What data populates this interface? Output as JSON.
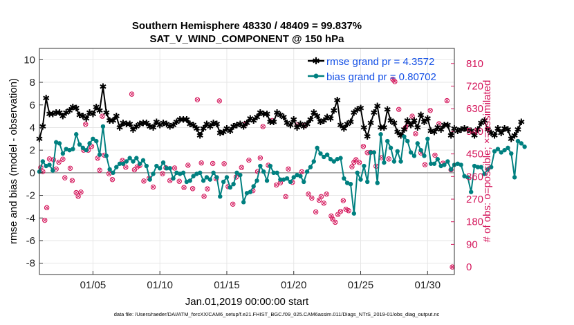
{
  "chart_data": {
    "type": "line",
    "title": "Southern Hemisphere 48330 / 48409 = 99.837%",
    "subtitle": "SAT_V_WIND_COMPONENT @ 150 hPa",
    "xlabel": "Jan.01,2019 00:00:00 start",
    "ylabel": "rmse and bias (model - observation)",
    "y2label": "# of obs: o=possible; ×=assimilated",
    "xlim": [
      1,
      32
    ],
    "ylim": [
      -9,
      11
    ],
    "y2lim": [
      -30,
      870
    ],
    "yticks": [
      -8,
      -6,
      -4,
      -2,
      0,
      2,
      4,
      6,
      8,
      10
    ],
    "y2ticks": [
      0,
      90,
      180,
      270,
      360,
      450,
      540,
      630,
      720,
      810
    ],
    "xticks": [
      {
        "value": 5,
        "label": "01/05"
      },
      {
        "value": 10,
        "label": "01/10"
      },
      {
        "value": 15,
        "label": "01/15"
      },
      {
        "value": 20,
        "label": "01/20"
      },
      {
        "value": 25,
        "label": "01/25"
      },
      {
        "value": 30,
        "label": "01/30"
      }
    ],
    "grid": true,
    "legend_position": "top-right",
    "step_days": 0.25,
    "series": [
      {
        "name": "rmse grand pr = 4.3572",
        "color": "#000000",
        "marker": "star",
        "x_start": 1.0,
        "values": [
          3.0,
          4.1,
          6.6,
          5.2,
          5.2,
          5.3,
          5.3,
          5.0,
          5.3,
          5.5,
          5.8,
          5.7,
          5.1,
          5.0,
          4.8,
          5.3,
          5.2,
          5.8,
          5.5,
          7.6,
          5.3,
          4.6,
          4.6,
          5.0,
          4.0,
          4.4,
          4.3,
          4.3,
          3.8,
          4.1,
          4.3,
          4.4,
          4.4,
          4.1,
          4.0,
          4.5,
          4.2,
          4.4,
          4.3,
          4.1,
          4.2,
          4.5,
          4.7,
          4.7,
          4.7,
          4.3,
          4.2,
          3.9,
          3.3,
          3.9,
          4.3,
          4.1,
          4.4,
          4.3,
          3.5,
          3.6,
          3.9,
          3.7,
          4.1,
          4.2,
          4.3,
          4.1,
          4.4,
          4.8,
          4.6,
          4.9,
          5.3,
          5.2,
          5.2,
          4.5,
          4.5,
          5.3,
          5.1,
          4.9,
          4.4,
          4.2,
          4.7,
          4.0,
          4.3,
          4.1,
          4.3,
          4.7,
          5.3,
          5.0,
          4.5,
          4.6,
          4.9,
          4.8,
          5.5,
          6.4,
          4.2,
          3.9,
          4.3,
          4.5,
          5.3,
          5.6,
          5.7,
          4.0,
          3.2,
          4.4,
          5.3,
          5.9,
          4.0,
          4.0,
          5.6,
          4.6,
          4.4,
          3.6,
          3.3,
          3.8,
          4.6,
          4.2,
          4.6,
          4.0,
          5.1,
          4.5,
          4.8,
          3.7,
          3.6,
          4.0,
          3.8,
          4.2,
          4.2,
          3.3,
          3.9,
          3.7,
          3.8,
          3.9,
          3.8,
          3.7,
          3.3,
          3.8,
          4.4,
          4.6,
          3.8,
          3.5,
          3.3,
          3.9,
          3.5,
          3.9,
          3.8,
          3.0,
          3.3,
          3.8,
          4.5
        ]
      },
      {
        "name": "bias grand pr = 0.80702",
        "color": "#008080",
        "marker": "circle",
        "x_start": 1.0,
        "values": [
          0.1,
          1.0,
          0.6,
          0.7,
          0.2,
          2.7,
          2.6,
          1.7,
          2.1,
          2.0,
          2.1,
          3.4,
          2.5,
          2.2,
          2.0,
          2.6,
          3.0,
          2.8,
          1.6,
          4.1,
          1.5,
          0.3,
          0.0,
          0.5,
          0.8,
          0.8,
          1.0,
          1.3,
          1.0,
          1.3,
          0.8,
          1.1,
          0.6,
          -0.6,
          -0.1,
          0.6,
          0.4,
          0.9,
          0.4,
          0.4,
          -0.5,
          0.0,
          -0.1,
          0.0,
          -0.8,
          -0.7,
          -0.3,
          -0.1,
          0.0,
          -0.7,
          -0.4,
          -0.6,
          0.0,
          -0.4,
          -2.1,
          -0.8,
          -0.4,
          -1.3,
          -1.0,
          0.0,
          -0.2,
          -2.6,
          -1.8,
          -1.7,
          -1.2,
          -0.7,
          0.6,
          0.1,
          -0.7,
          0.6,
          0.0,
          0.0,
          -0.6,
          -0.6,
          -0.5,
          -0.8,
          -0.4,
          -0.2,
          -0.3,
          -0.8,
          0.1,
          0.5,
          1.0,
          2.2,
          1.7,
          1.4,
          1.6,
          1.2,
          1.0,
          1.2,
          1.3,
          -0.5,
          -0.9,
          -1.0,
          -3.6,
          0.0,
          -0.6,
          0.6,
          -0.8,
          1.8,
          1.8,
          -0.9,
          3.4,
          0.9,
          2.8,
          2.2,
          1.0,
          1.9,
          1.0,
          3.2,
          2.8,
          1.8,
          1.5,
          2.6,
          2.0,
          1.5,
          3.0,
          0.8,
          0.8,
          1.2,
          0.6,
          0.7,
          1.0,
          0.3,
          0.7,
          0.8,
          0.7,
          -0.3,
          -0.4,
          -1.7,
          0.6,
          0.5,
          0.5,
          -0.1,
          0.3,
          0.5,
          1.9,
          2.1,
          1.8,
          2.0,
          2.2,
          1.7,
          -0.4,
          2.8,
          2.6,
          2.3
        ]
      }
    ],
    "obs_count_points": [
      [
        1.1,
        396
      ],
      [
        1.25,
        380
      ],
      [
        1.4,
        186
      ],
      [
        1.55,
        236
      ],
      [
        1.75,
        430
      ],
      [
        2.05,
        427
      ],
      [
        2.25,
        390
      ],
      [
        2.45,
        417
      ],
      [
        2.75,
        429
      ],
      [
        2.9,
        355
      ],
      [
        3.3,
        393
      ],
      [
        3.45,
        344
      ],
      [
        3.75,
        296
      ],
      [
        3.9,
        281
      ],
      [
        4.1,
        298
      ],
      [
        4.3,
        465
      ],
      [
        4.45,
        568
      ],
      [
        4.65,
        465
      ],
      [
        4.9,
        480
      ],
      [
        5.35,
        433
      ],
      [
        5.5,
        385
      ],
      [
        5.7,
        600
      ],
      [
        5.85,
        445
      ],
      [
        6.2,
        371
      ],
      [
        6.45,
        348
      ],
      [
        7.2,
        424
      ],
      [
        7.45,
        397
      ],
      [
        7.9,
        688
      ],
      [
        8.1,
        387
      ],
      [
        8.3,
        398
      ],
      [
        8.5,
        404
      ],
      [
        8.8,
        342
      ],
      [
        9.2,
        353
      ],
      [
        9.5,
        318
      ],
      [
        10.2,
        371
      ],
      [
        10.45,
        395
      ],
      [
        10.75,
        344
      ],
      [
        11.1,
        394
      ],
      [
        11.45,
        341
      ],
      [
        11.8,
        316
      ],
      [
        12.1,
        405
      ],
      [
        12.45,
        312
      ],
      [
        12.8,
        666
      ],
      [
        13.1,
        414
      ],
      [
        13.3,
        281
      ],
      [
        13.55,
        311
      ],
      [
        13.95,
        412
      ],
      [
        14.2,
        351
      ],
      [
        14.45,
        661
      ],
      [
        14.8,
        411
      ],
      [
        15.1,
        320
      ],
      [
        15.45,
        250
      ],
      [
        15.7,
        358
      ],
      [
        16.1,
        396
      ],
      [
        16.4,
        570
      ],
      [
        16.65,
        425
      ],
      [
        16.95,
        304
      ],
      [
        17.3,
        380
      ],
      [
        17.5,
        434
      ],
      [
        17.7,
        559
      ],
      [
        18.1,
        405
      ],
      [
        18.4,
        583
      ],
      [
        18.7,
        326
      ],
      [
        19.0,
        335
      ],
      [
        19.4,
        280
      ],
      [
        19.6,
        390
      ],
      [
        19.9,
        337
      ],
      [
        20.25,
        565
      ],
      [
        20.6,
        379
      ],
      [
        20.8,
        563
      ],
      [
        21.1,
        290
      ],
      [
        21.35,
        274
      ],
      [
        21.65,
        219
      ],
      [
        21.9,
        266
      ],
      [
        22.05,
        280
      ],
      [
        22.25,
        254
      ],
      [
        22.45,
        290
      ],
      [
        22.8,
        203
      ],
      [
        22.9,
        191
      ],
      [
        23.1,
        178
      ],
      [
        23.3,
        209
      ],
      [
        23.5,
        221
      ],
      [
        23.7,
        264
      ],
      [
        23.9,
        230
      ],
      [
        24.1,
        224
      ],
      [
        24.35,
        399
      ],
      [
        24.5,
        417
      ],
      [
        24.65,
        427
      ],
      [
        24.9,
        416
      ],
      [
        25.2,
        480
      ],
      [
        25.5,
        455
      ],
      [
        25.75,
        456
      ],
      [
        26.15,
        401
      ],
      [
        26.55,
        435
      ],
      [
        27.1,
        430
      ],
      [
        27.4,
        747
      ],
      [
        27.55,
        738
      ],
      [
        27.85,
        627
      ],
      [
        28.35,
        555
      ],
      [
        28.55,
        571
      ],
      [
        28.85,
        600
      ],
      [
        29.1,
        530
      ],
      [
        29.5,
        454
      ],
      [
        29.8,
        407
      ],
      [
        30.2,
        623
      ],
      [
        30.55,
        445
      ],
      [
        30.85,
        570
      ],
      [
        31.15,
        413
      ],
      [
        31.45,
        662
      ],
      [
        31.75,
        387
      ],
      [
        31.85,
        0
      ]
    ],
    "footer": "data file: /Users/raeder/DAI/ATM_forcXX/CAM6_setup/f.e21.FHIST_BGC.f09_025.CAM6assim.011/Diags_NTrS_2019-01/obs_diag_output.nc",
    "colors": {
      "rmse": "#000000",
      "bias": "#008080",
      "obs": "#d4145a",
      "legend_text": "#1450e6",
      "zero_line": "#999999"
    }
  }
}
